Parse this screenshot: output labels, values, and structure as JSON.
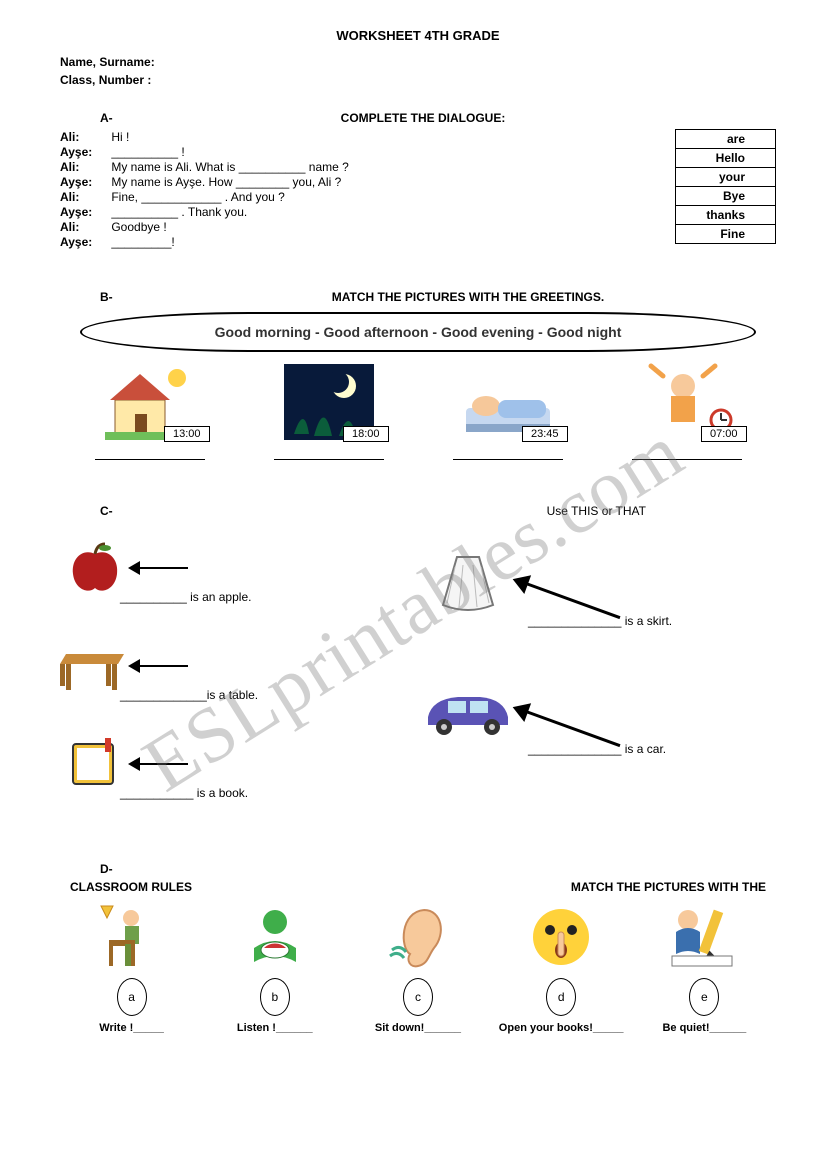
{
  "title": "WORKSHEET 4TH GRADE",
  "header": {
    "name_label": "Name, Surname:",
    "class_label": "Class, Number   :"
  },
  "watermark": "ESLprintables.com",
  "sectionA": {
    "label": "A-",
    "heading": "COMPLETE THE DIALOGUE:",
    "lines": [
      {
        "speaker": "Ali:",
        "text": "Hi !"
      },
      {
        "speaker": "Ayşe:",
        "text": "__________ !"
      },
      {
        "speaker": "Ali:",
        "text": "My name is Ali.   What is __________ name ?"
      },
      {
        "speaker": "Ayşe:",
        "text": "My name is Ayşe.   How ________ you,   Ali ?"
      },
      {
        "speaker": "Ali:",
        "text": "Fine, ____________ . And you ?"
      },
      {
        "speaker": "Ayşe:",
        "text": "__________ . Thank you."
      },
      {
        "speaker": "Ali:",
        "text": "Goodbye !"
      },
      {
        "speaker": "Ayşe:",
        "text": "_________!"
      }
    ],
    "word_bank": [
      "are",
      "Hello",
      "your",
      "Bye",
      "thanks",
      "Fine"
    ]
  },
  "sectionB": {
    "label": "B-",
    "heading": "MATCH THE PICTURES WITH THE GREETINGS.",
    "greetings": "Good morning    -    Good afternoon    -    Good evening    -    Good night",
    "items": [
      {
        "time": "13:00",
        "icon": "house-sun"
      },
      {
        "time": "18:00",
        "icon": "evening-moon"
      },
      {
        "time": "23:45",
        "icon": "sleeping"
      },
      {
        "time": "07:00",
        "icon": "wakeup"
      }
    ]
  },
  "sectionC": {
    "label": "C-",
    "heading": "Use THIS or THAT",
    "left_items": [
      {
        "icon": "apple",
        "text": "__________ is an apple."
      },
      {
        "icon": "table",
        "text": "_____________is a table."
      },
      {
        "icon": "book",
        "text": "___________ is a book."
      }
    ],
    "right_items": [
      {
        "icon": "skirt",
        "text": "______________ is a skirt."
      },
      {
        "icon": "car",
        "text": "______________ is a car."
      }
    ]
  },
  "sectionD": {
    "label": "D-",
    "heading_left": "CLASSROOM RULES",
    "heading_right": "MATCH THE PICTURES WITH THE",
    "items": [
      {
        "letter": "a",
        "label": "Write !_____",
        "icon": "sit"
      },
      {
        "letter": "b",
        "label": "Listen !______",
        "icon": "read"
      },
      {
        "letter": "c",
        "label": "Sit down!______",
        "icon": "ear"
      },
      {
        "letter": "d",
        "label": "Open your books!_____",
        "icon": "quiet"
      },
      {
        "letter": "e",
        "label": "Be quiet!______",
        "icon": "write"
      }
    ]
  }
}
